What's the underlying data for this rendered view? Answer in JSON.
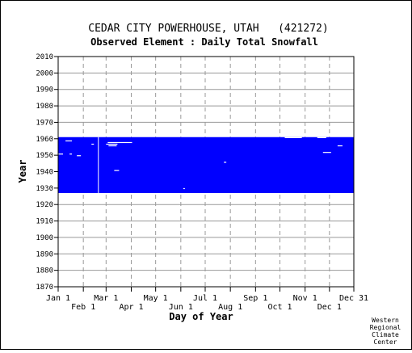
{
  "chart_data": {
    "type": "heatmap",
    "title": "CEDAR CITY POWERHOUSE, UTAH   (421272)",
    "subtitle": "Observed Element : Daily Total Snowfall",
    "xlabel": "Day of Year",
    "ylabel": "Year",
    "ylim": [
      1870,
      2010
    ],
    "xlim_day_of_year": [
      1,
      365
    ],
    "grid": true,
    "x_ticks_top_row": [
      {
        "label": "Jan 1",
        "day": 1
      },
      {
        "label": "Mar 1",
        "day": 60
      },
      {
        "label": "May 1",
        "day": 121
      },
      {
        "label": "Jul 1",
        "day": 182
      },
      {
        "label": "Sep 1",
        "day": 244
      },
      {
        "label": "Nov 1",
        "day": 305
      },
      {
        "label": "Dec 31",
        "day": 365
      }
    ],
    "x_ticks_bottom_row": [
      {
        "label": "Feb 1",
        "day": 32
      },
      {
        "label": "Apr 1",
        "day": 91
      },
      {
        "label": "Jun 1",
        "day": 152
      },
      {
        "label": "Aug 1",
        "day": 213
      },
      {
        "label": "Oct 1",
        "day": 274
      },
      {
        "label": "Dec 1",
        "day": 335
      }
    ],
    "y_ticks": [
      "2010",
      "2000",
      "1990",
      "1980",
      "1970",
      "1960",
      "1950",
      "1940",
      "1930",
      "1920",
      "1910",
      "1900",
      "1890",
      "1880",
      "1870"
    ],
    "data_coverage": {
      "year_start": 1927,
      "year_end": 1961,
      "color": "#0000ff",
      "missing_gaps": [
        {
          "year": 1958,
          "day_start": 10,
          "day_end": 17
        },
        {
          "year": 1957,
          "day_start": 62,
          "day_end": 91
        },
        {
          "year": 1956,
          "day_start": 42,
          "day_end": 44
        },
        {
          "year": 1956,
          "day_start": 60,
          "day_end": 73
        },
        {
          "year": 1955,
          "day_start": 63,
          "day_end": 72
        },
        {
          "year": 1950,
          "day_start": 1,
          "day_end": 6
        },
        {
          "year": 1950,
          "day_start": 15,
          "day_end": 17
        },
        {
          "year": 1949,
          "day_start": 24,
          "day_end": 28
        },
        {
          "year": 1940,
          "day_start": 70,
          "day_end": 75
        },
        {
          "year": 1960,
          "day_start": 280,
          "day_end": 300
        },
        {
          "year": 1960,
          "day_start": 320,
          "day_end": 330
        },
        {
          "year": 1955,
          "day_start": 345,
          "day_end": 350
        },
        {
          "year": 1951,
          "day_start": 327,
          "day_end": 336
        },
        {
          "year": 1929,
          "day_start": 155,
          "day_end": 156
        },
        {
          "year": 1945,
          "day_start": 205,
          "day_end": 207
        }
      ],
      "missing_columns": [
        {
          "day": 50,
          "year_start": 1927,
          "year_end": 1961
        }
      ]
    }
  },
  "footer": {
    "credit_lines": [
      "Western",
      "Regional",
      "Climate",
      "Center"
    ]
  }
}
